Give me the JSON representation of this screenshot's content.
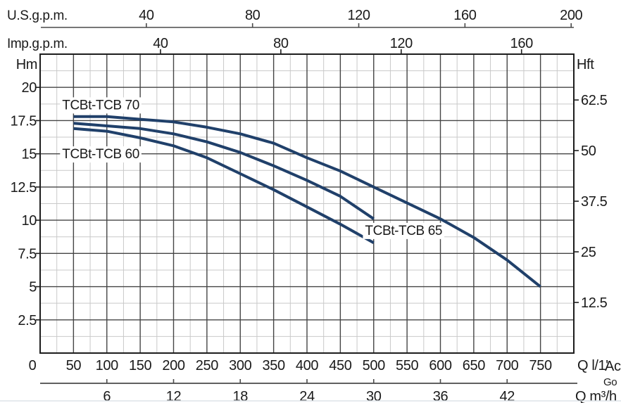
{
  "colors": {
    "curve": "#20406a",
    "grid_major": "#454545",
    "grid_minor": "#c9c9c9",
    "frame": "#1d1d1d",
    "axis_line": "#4a4a4a",
    "text": "#1a1a1a",
    "watermark_blue": "#a9bccd",
    "watermark_gray": "#b3b3b3",
    "page_edge": "#dde3e9"
  },
  "watermark": {
    "line1": "Ac",
    "line2": "Go"
  },
  "chart_data": {
    "type": "line",
    "title": "",
    "x_range_lmin": [
      0,
      800
    ],
    "y_range_m": [
      0,
      22.5
    ],
    "grid": {
      "major_lmin": 50,
      "minor_lmin": 25,
      "major_m": 2.5,
      "minor_m": 1.25,
      "grid_on": true
    },
    "x_axes": [
      {
        "id": "usgpm",
        "unit_label": "U.S.g.p.m.",
        "ticks": [
          40,
          80,
          120,
          160,
          200
        ],
        "lmin_per_unit": 3.98,
        "position": "top-detached"
      },
      {
        "id": "impgpm",
        "unit_label": "Imp.g.p.m.",
        "ticks": [
          40,
          80,
          120,
          160
        ],
        "lmin_per_unit": 4.51,
        "position": "top-frame"
      },
      {
        "id": "lmin",
        "unit_label": "Q l/1'",
        "ticks": [
          0,
          50,
          100,
          150,
          200,
          250,
          300,
          350,
          400,
          450,
          500,
          550,
          600,
          650,
          700,
          750
        ],
        "lmin_per_unit": 1,
        "position": "bottom-frame"
      },
      {
        "id": "m3h",
        "unit_label": "Q m³/h",
        "ticks": [
          6,
          12,
          18,
          24,
          30,
          36,
          42
        ],
        "lmin_per_unit": 16.6667,
        "position": "bottom-detached"
      }
    ],
    "y_axes": [
      {
        "id": "hm",
        "unit_label": "Hm",
        "ticks": [
          2.5,
          5,
          7.5,
          10,
          12.5,
          15,
          17.5,
          20
        ],
        "m_per_unit": 1,
        "side": "left"
      },
      {
        "id": "hft",
        "unit_label": "Hft",
        "ticks": [
          12.5,
          25,
          37.5,
          50,
          62.5
        ],
        "m_per_unit": 0.3048,
        "side": "right"
      }
    ],
    "series": [
      {
        "name": "TCBt-TCB 70",
        "points": [
          [
            50,
            17.8
          ],
          [
            100,
            17.8
          ],
          [
            150,
            17.6
          ],
          [
            200,
            17.4
          ],
          [
            250,
            17.0
          ],
          [
            300,
            16.5
          ],
          [
            350,
            15.8
          ],
          [
            400,
            14.7
          ],
          [
            450,
            13.7
          ],
          [
            500,
            12.5
          ],
          [
            550,
            11.3
          ],
          [
            600,
            10.1
          ],
          [
            650,
            8.7
          ],
          [
            700,
            7.0
          ],
          [
            750,
            5.0
          ]
        ],
        "label": {
          "q": 33,
          "h": 18.35,
          "anchor": "start"
        }
      },
      {
        "name": "TCBt-TCB 65",
        "points": [
          [
            50,
            17.3
          ],
          [
            100,
            17.1
          ],
          [
            150,
            16.9
          ],
          [
            200,
            16.5
          ],
          [
            250,
            15.9
          ],
          [
            300,
            15.1
          ],
          [
            350,
            14.1
          ],
          [
            400,
            13.0
          ],
          [
            450,
            11.8
          ],
          [
            500,
            10.1
          ]
        ],
        "label": {
          "q": 487,
          "h": 8.9,
          "anchor": "start"
        }
      },
      {
        "name": "TCBt-TCB 60",
        "points": [
          [
            50,
            16.9
          ],
          [
            100,
            16.7
          ],
          [
            150,
            16.2
          ],
          [
            200,
            15.6
          ],
          [
            250,
            14.7
          ],
          [
            300,
            13.5
          ],
          [
            350,
            12.3
          ],
          [
            400,
            11.0
          ],
          [
            450,
            9.7
          ],
          [
            500,
            8.3
          ]
        ],
        "label": {
          "q": 33,
          "h": 14.66,
          "anchor": "start"
        }
      }
    ]
  }
}
